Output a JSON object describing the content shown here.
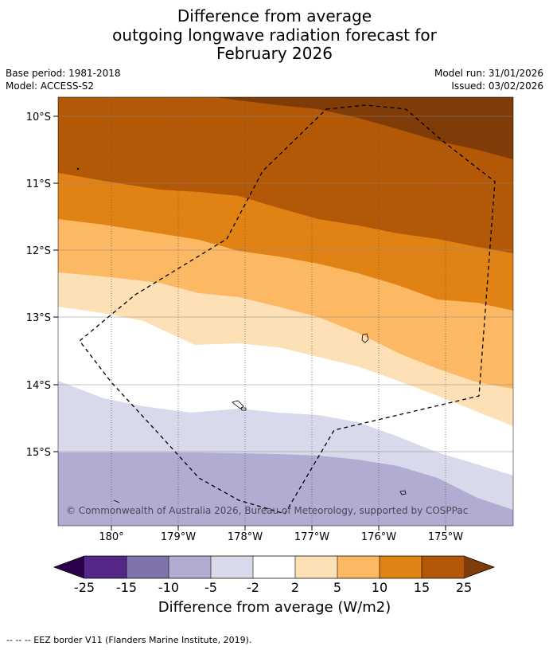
{
  "title": {
    "line1": "Difference from average",
    "line2": "outgoing longwave radiation forecast for",
    "line3": "February 2026"
  },
  "meta": {
    "base_period": "Base period: 1981-2018",
    "model": "Model: ACCESS-S2",
    "model_run": "Model run: 31/01/2026",
    "issued": "Issued: 03/02/2026"
  },
  "map": {
    "lat_labels": [
      "10°S",
      "11°S",
      "12°S",
      "13°S",
      "14°S",
      "15°S"
    ],
    "lon_labels": [
      "180°",
      "179°W",
      "178°W",
      "177°W",
      "176°W",
      "175°W"
    ],
    "copyright": "© Commonwealth of Australia 2026, Bureau of Meteorology, supported by COSPPac",
    "colors": {
      "pos25": "#7f3b08",
      "pos15": "#b35806",
      "pos10": "#e08214",
      "pos5": "#fdb863",
      "pos2": "#fee0b6",
      "neutral": "#ffffff",
      "neg2": "#d8daeb",
      "neg5": "#b2abd2",
      "neg10": "#8073ac",
      "neg15": "#542788",
      "neg25": "#2d004b"
    }
  },
  "colorbar": {
    "ticks": [
      "-25",
      "-15",
      "-10",
      "-5",
      "-2",
      "2",
      "5",
      "10",
      "15",
      "25"
    ],
    "colors": [
      "#542788",
      "#8073ac",
      "#b2abd2",
      "#d8daeb",
      "#ffffff",
      "#fee0b6",
      "#fdb863",
      "#e08214",
      "#b35806"
    ],
    "under_color": "#2d004b",
    "over_color": "#7f3b08",
    "label": "Difference from average (W/m2)"
  },
  "footer": "--  --  -- EEZ border V11 (Flanders Marine Institute, 2019)."
}
